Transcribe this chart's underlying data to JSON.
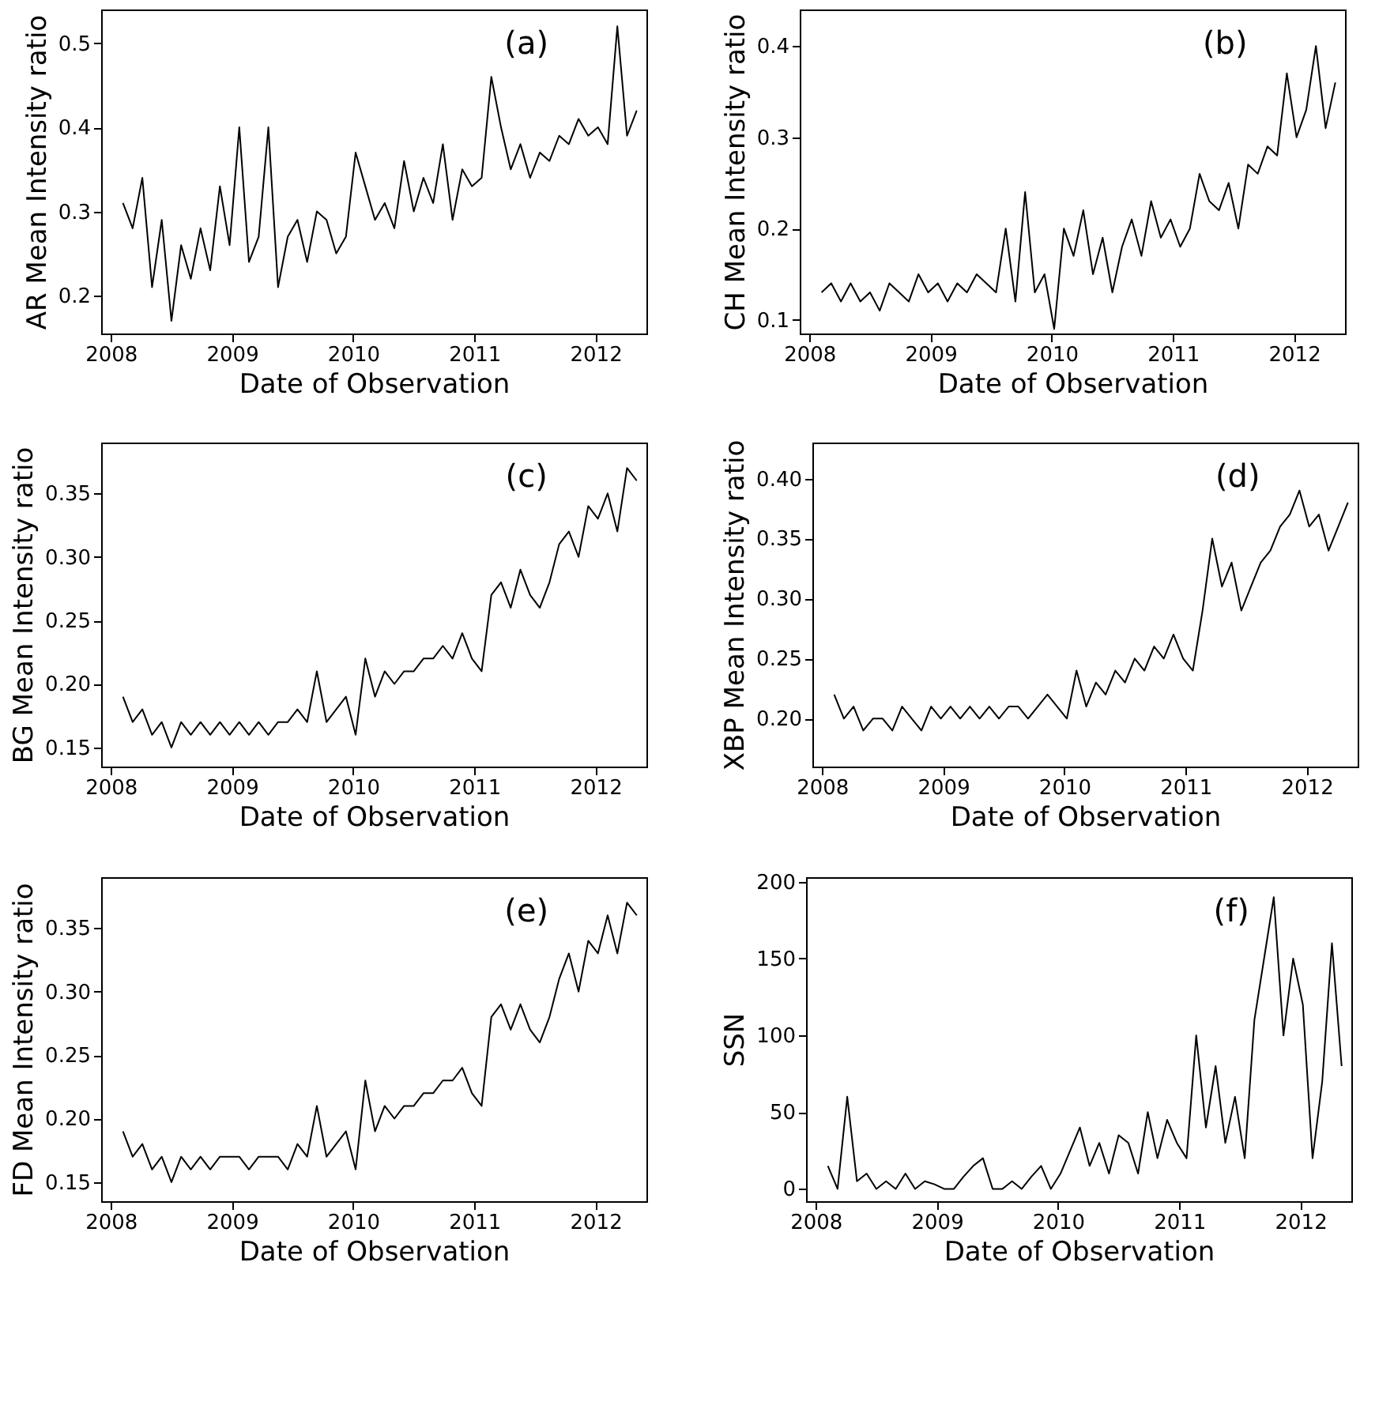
{
  "chart_data": [
    {
      "type": "line",
      "ylabel": "AR Mean Intensity ratio",
      "xlabel": "Date of Observation",
      "annotations": [
        "(a)"
      ],
      "xlim": [
        2007.92,
        2012.42
      ],
      "xticks": [
        2008,
        2009,
        2010,
        2011,
        2012
      ],
      "ylim": [
        0.155,
        0.54
      ],
      "yticks": [
        0.2,
        0.3,
        0.4,
        0.5
      ],
      "grid": false,
      "x": [
        2008.1,
        2008.18,
        2008.26,
        2008.34,
        2008.42,
        2008.5,
        2008.58,
        2008.66,
        2008.74,
        2008.82,
        2008.9,
        2008.98,
        2009.06,
        2009.14,
        2009.22,
        2009.3,
        2009.38,
        2009.46,
        2009.54,
        2009.62,
        2009.7,
        2009.78,
        2009.86,
        2009.94,
        2010.02,
        2010.1,
        2010.18,
        2010.26,
        2010.34,
        2010.42,
        2010.5,
        2010.58,
        2010.66,
        2010.74,
        2010.82,
        2010.9,
        2010.98,
        2011.06,
        2011.14,
        2011.22,
        2011.3,
        2011.38,
        2011.46,
        2011.54,
        2011.62,
        2011.7,
        2011.78,
        2011.86,
        2011.94,
        2012.02,
        2012.1,
        2012.18,
        2012.26,
        2012.34
      ],
      "series": [
        {
          "color": "#000000",
          "values": [
            0.31,
            0.28,
            0.34,
            0.21,
            0.29,
            0.17,
            0.26,
            0.22,
            0.28,
            0.23,
            0.33,
            0.26,
            0.4,
            0.24,
            0.27,
            0.4,
            0.21,
            0.27,
            0.29,
            0.24,
            0.3,
            0.29,
            0.25,
            0.27,
            0.37,
            0.33,
            0.29,
            0.31,
            0.28,
            0.36,
            0.3,
            0.34,
            0.31,
            0.38,
            0.29,
            0.35,
            0.33,
            0.34,
            0.46,
            0.4,
            0.35,
            0.38,
            0.34,
            0.37,
            0.36,
            0.39,
            0.38,
            0.41,
            0.39,
            0.4,
            0.38,
            0.52,
            0.39,
            0.42
          ]
        }
      ]
    },
    {
      "type": "line",
      "ylabel": "CH Mean Intensity ratio",
      "xlabel": "Date of Observation",
      "annotations": [
        "(b)"
      ],
      "xlim": [
        2007.92,
        2012.42
      ],
      "xticks": [
        2008,
        2009,
        2010,
        2011,
        2012
      ],
      "ylim": [
        0.085,
        0.44
      ],
      "yticks": [
        0.1,
        0.2,
        0.3,
        0.4
      ],
      "grid": false,
      "x": [
        2008.1,
        2008.18,
        2008.26,
        2008.34,
        2008.42,
        2008.5,
        2008.58,
        2008.66,
        2008.74,
        2008.82,
        2008.9,
        2008.98,
        2009.06,
        2009.14,
        2009.22,
        2009.3,
        2009.38,
        2009.46,
        2009.54,
        2009.62,
        2009.7,
        2009.78,
        2009.86,
        2009.94,
        2010.02,
        2010.1,
        2010.18,
        2010.26,
        2010.34,
        2010.42,
        2010.5,
        2010.58,
        2010.66,
        2010.74,
        2010.82,
        2010.9,
        2010.98,
        2011.06,
        2011.14,
        2011.22,
        2011.3,
        2011.38,
        2011.46,
        2011.54,
        2011.62,
        2011.7,
        2011.78,
        2011.86,
        2011.94,
        2012.02,
        2012.1,
        2012.18,
        2012.26,
        2012.34
      ],
      "series": [
        {
          "color": "#000000",
          "values": [
            0.13,
            0.14,
            0.12,
            0.14,
            0.12,
            0.13,
            0.11,
            0.14,
            0.13,
            0.12,
            0.15,
            0.13,
            0.14,
            0.12,
            0.14,
            0.13,
            0.15,
            0.14,
            0.13,
            0.2,
            0.12,
            0.24,
            0.13,
            0.15,
            0.09,
            0.2,
            0.17,
            0.22,
            0.15,
            0.19,
            0.13,
            0.18,
            0.21,
            0.17,
            0.23,
            0.19,
            0.21,
            0.18,
            0.2,
            0.26,
            0.23,
            0.22,
            0.25,
            0.2,
            0.27,
            0.26,
            0.29,
            0.28,
            0.37,
            0.3,
            0.33,
            0.4,
            0.31,
            0.36
          ]
        }
      ]
    },
    {
      "type": "line",
      "ylabel": "BG Mean Intensity ratio",
      "xlabel": "Date of Observation",
      "annotations": [
        "(c)"
      ],
      "xlim": [
        2007.92,
        2012.42
      ],
      "xticks": [
        2008,
        2009,
        2010,
        2011,
        2012
      ],
      "ylim": [
        0.135,
        0.39
      ],
      "yticks": [
        0.15,
        {
          "value": 0.2,
          "label": "0.20"
        },
        0.25,
        {
          "value": 0.3,
          "label": "0.30"
        },
        0.35
      ],
      "grid": false,
      "x": [
        2008.1,
        2008.18,
        2008.26,
        2008.34,
        2008.42,
        2008.5,
        2008.58,
        2008.66,
        2008.74,
        2008.82,
        2008.9,
        2008.98,
        2009.06,
        2009.14,
        2009.22,
        2009.3,
        2009.38,
        2009.46,
        2009.54,
        2009.62,
        2009.7,
        2009.78,
        2009.86,
        2009.94,
        2010.02,
        2010.1,
        2010.18,
        2010.26,
        2010.34,
        2010.42,
        2010.5,
        2010.58,
        2010.66,
        2010.74,
        2010.82,
        2010.9,
        2010.98,
        2011.06,
        2011.14,
        2011.22,
        2011.3,
        2011.38,
        2011.46,
        2011.54,
        2011.62,
        2011.7,
        2011.78,
        2011.86,
        2011.94,
        2012.02,
        2012.1,
        2012.18,
        2012.26,
        2012.34
      ],
      "series": [
        {
          "color": "#000000",
          "values": [
            0.19,
            0.17,
            0.18,
            0.16,
            0.17,
            0.15,
            0.17,
            0.16,
            0.17,
            0.16,
            0.17,
            0.16,
            0.17,
            0.16,
            0.17,
            0.16,
            0.17,
            0.17,
            0.18,
            0.17,
            0.21,
            0.17,
            0.18,
            0.19,
            0.16,
            0.22,
            0.19,
            0.21,
            0.2,
            0.21,
            0.21,
            0.22,
            0.22,
            0.23,
            0.22,
            0.24,
            0.22,
            0.21,
            0.27,
            0.28,
            0.26,
            0.29,
            0.27,
            0.26,
            0.28,
            0.31,
            0.32,
            0.3,
            0.34,
            0.33,
            0.35,
            0.32,
            0.37,
            0.36
          ]
        }
      ]
    },
    {
      "type": "line",
      "ylabel": "XBP Mean Intensity ratio",
      "xlabel": "Date of Observation",
      "annotations": [
        "(d)"
      ],
      "xlim": [
        2007.92,
        2012.42
      ],
      "xticks": [
        2008,
        2009,
        2010,
        2011,
        2012
      ],
      "ylim": [
        0.16,
        0.43
      ],
      "yticks": [
        {
          "value": 0.2,
          "label": "0.20"
        },
        0.25,
        {
          "value": 0.3,
          "label": "0.30"
        },
        0.35,
        {
          "value": 0.4,
          "label": "0.40"
        }
      ],
      "grid": false,
      "x": [
        2008.1,
        2008.18,
        2008.26,
        2008.34,
        2008.42,
        2008.5,
        2008.58,
        2008.66,
        2008.74,
        2008.82,
        2008.9,
        2008.98,
        2009.06,
        2009.14,
        2009.22,
        2009.3,
        2009.38,
        2009.46,
        2009.54,
        2009.62,
        2009.7,
        2009.78,
        2009.86,
        2009.94,
        2010.02,
        2010.1,
        2010.18,
        2010.26,
        2010.34,
        2010.42,
        2010.5,
        2010.58,
        2010.66,
        2010.74,
        2010.82,
        2010.9,
        2010.98,
        2011.06,
        2011.14,
        2011.22,
        2011.3,
        2011.38,
        2011.46,
        2011.54,
        2011.62,
        2011.7,
        2011.78,
        2011.86,
        2011.94,
        2012.02,
        2012.1,
        2012.18,
        2012.26,
        2012.34
      ],
      "series": [
        {
          "color": "#000000",
          "values": [
            0.22,
            0.2,
            0.21,
            0.19,
            0.2,
            0.2,
            0.19,
            0.21,
            0.2,
            0.19,
            0.21,
            0.2,
            0.21,
            0.2,
            0.21,
            0.2,
            0.21,
            0.2,
            0.21,
            0.21,
            0.2,
            0.21,
            0.22,
            0.21,
            0.2,
            0.24,
            0.21,
            0.23,
            0.22,
            0.24,
            0.23,
            0.25,
            0.24,
            0.26,
            0.25,
            0.27,
            0.25,
            0.24,
            0.29,
            0.35,
            0.31,
            0.33,
            0.29,
            0.31,
            0.33,
            0.34,
            0.36,
            0.37,
            0.39,
            0.36,
            0.37,
            0.34,
            0.36,
            0.38
          ]
        }
      ]
    },
    {
      "type": "line",
      "ylabel": "FD Mean Intensity ratio",
      "xlabel": "Date of Observation",
      "annotations": [
        "(e)"
      ],
      "xlim": [
        2007.92,
        2012.42
      ],
      "xticks": [
        2008,
        2009,
        2010,
        2011,
        2012
      ],
      "ylim": [
        0.135,
        0.39
      ],
      "yticks": [
        0.15,
        {
          "value": 0.2,
          "label": "0.20"
        },
        0.25,
        {
          "value": 0.3,
          "label": "0.30"
        },
        0.35
      ],
      "grid": false,
      "x": [
        2008.1,
        2008.18,
        2008.26,
        2008.34,
        2008.42,
        2008.5,
        2008.58,
        2008.66,
        2008.74,
        2008.82,
        2008.9,
        2008.98,
        2009.06,
        2009.14,
        2009.22,
        2009.3,
        2009.38,
        2009.46,
        2009.54,
        2009.62,
        2009.7,
        2009.78,
        2009.86,
        2009.94,
        2010.02,
        2010.1,
        2010.18,
        2010.26,
        2010.34,
        2010.42,
        2010.5,
        2010.58,
        2010.66,
        2010.74,
        2010.82,
        2010.9,
        2010.98,
        2011.06,
        2011.14,
        2011.22,
        2011.3,
        2011.38,
        2011.46,
        2011.54,
        2011.62,
        2011.7,
        2011.78,
        2011.86,
        2011.94,
        2012.02,
        2012.1,
        2012.18,
        2012.26,
        2012.34
      ],
      "series": [
        {
          "color": "#000000",
          "values": [
            0.19,
            0.17,
            0.18,
            0.16,
            0.17,
            0.15,
            0.17,
            0.16,
            0.17,
            0.16,
            0.17,
            0.17,
            0.17,
            0.16,
            0.17,
            0.17,
            0.17,
            0.16,
            0.18,
            0.17,
            0.21,
            0.17,
            0.18,
            0.19,
            0.16,
            0.23,
            0.19,
            0.21,
            0.2,
            0.21,
            0.21,
            0.22,
            0.22,
            0.23,
            0.23,
            0.24,
            0.22,
            0.21,
            0.28,
            0.29,
            0.27,
            0.29,
            0.27,
            0.26,
            0.28,
            0.31,
            0.33,
            0.3,
            0.34,
            0.33,
            0.36,
            0.33,
            0.37,
            0.36
          ]
        }
      ]
    },
    {
      "type": "line",
      "ylabel": "SSN",
      "xlabel": "Date of Observation",
      "annotations": [
        "(f)"
      ],
      "xlim": [
        2007.92,
        2012.42
      ],
      "xticks": [
        2008,
        2009,
        2010,
        2011,
        2012
      ],
      "ylim": [
        -8,
        203
      ],
      "yticks": [
        0,
        50,
        100,
        150,
        200
      ],
      "grid": false,
      "x": [
        2008.1,
        2008.18,
        2008.26,
        2008.34,
        2008.42,
        2008.5,
        2008.58,
        2008.66,
        2008.74,
        2008.82,
        2008.9,
        2008.98,
        2009.06,
        2009.14,
        2009.22,
        2009.3,
        2009.38,
        2009.46,
        2009.54,
        2009.62,
        2009.7,
        2009.78,
        2009.86,
        2009.94,
        2010.02,
        2010.1,
        2010.18,
        2010.26,
        2010.34,
        2010.42,
        2010.5,
        2010.58,
        2010.66,
        2010.74,
        2010.82,
        2010.9,
        2010.98,
        2011.06,
        2011.14,
        2011.22,
        2011.3,
        2011.38,
        2011.46,
        2011.54,
        2011.62,
        2011.7,
        2011.78,
        2011.86,
        2011.94,
        2012.02,
        2012.1,
        2012.18,
        2012.26,
        2012.34
      ],
      "series": [
        {
          "color": "#000000",
          "values": [
            15,
            0,
            60,
            5,
            10,
            0,
            5,
            0,
            10,
            0,
            5,
            3,
            0,
            0,
            8,
            15,
            20,
            0,
            0,
            5,
            0,
            8,
            15,
            0,
            10,
            25,
            40,
            15,
            30,
            10,
            35,
            30,
            10,
            50,
            20,
            45,
            30,
            20,
            100,
            40,
            80,
            30,
            60,
            20,
            110,
            150,
            190,
            100,
            150,
            120,
            20,
            70,
            160,
            80
          ]
        }
      ]
    }
  ]
}
